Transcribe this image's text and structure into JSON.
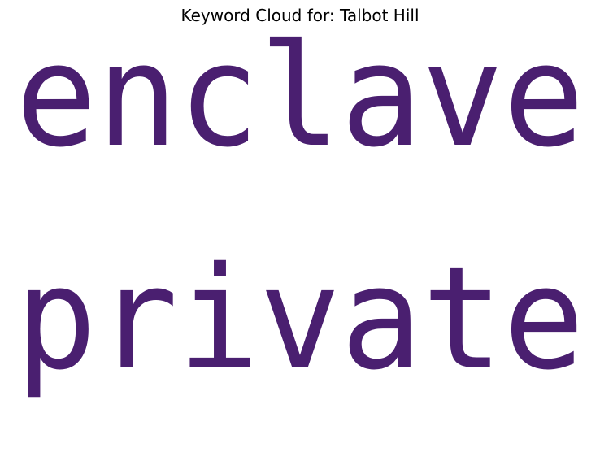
{
  "title": "Keyword Cloud for: Talbot Hill",
  "words": [
    {
      "text": "enclave",
      "weight": 1.0
    },
    {
      "text": "private",
      "weight": 1.0
    }
  ],
  "colors": {
    "word": "#4a1f70",
    "background": "#ffffff",
    "title": "#000000"
  }
}
